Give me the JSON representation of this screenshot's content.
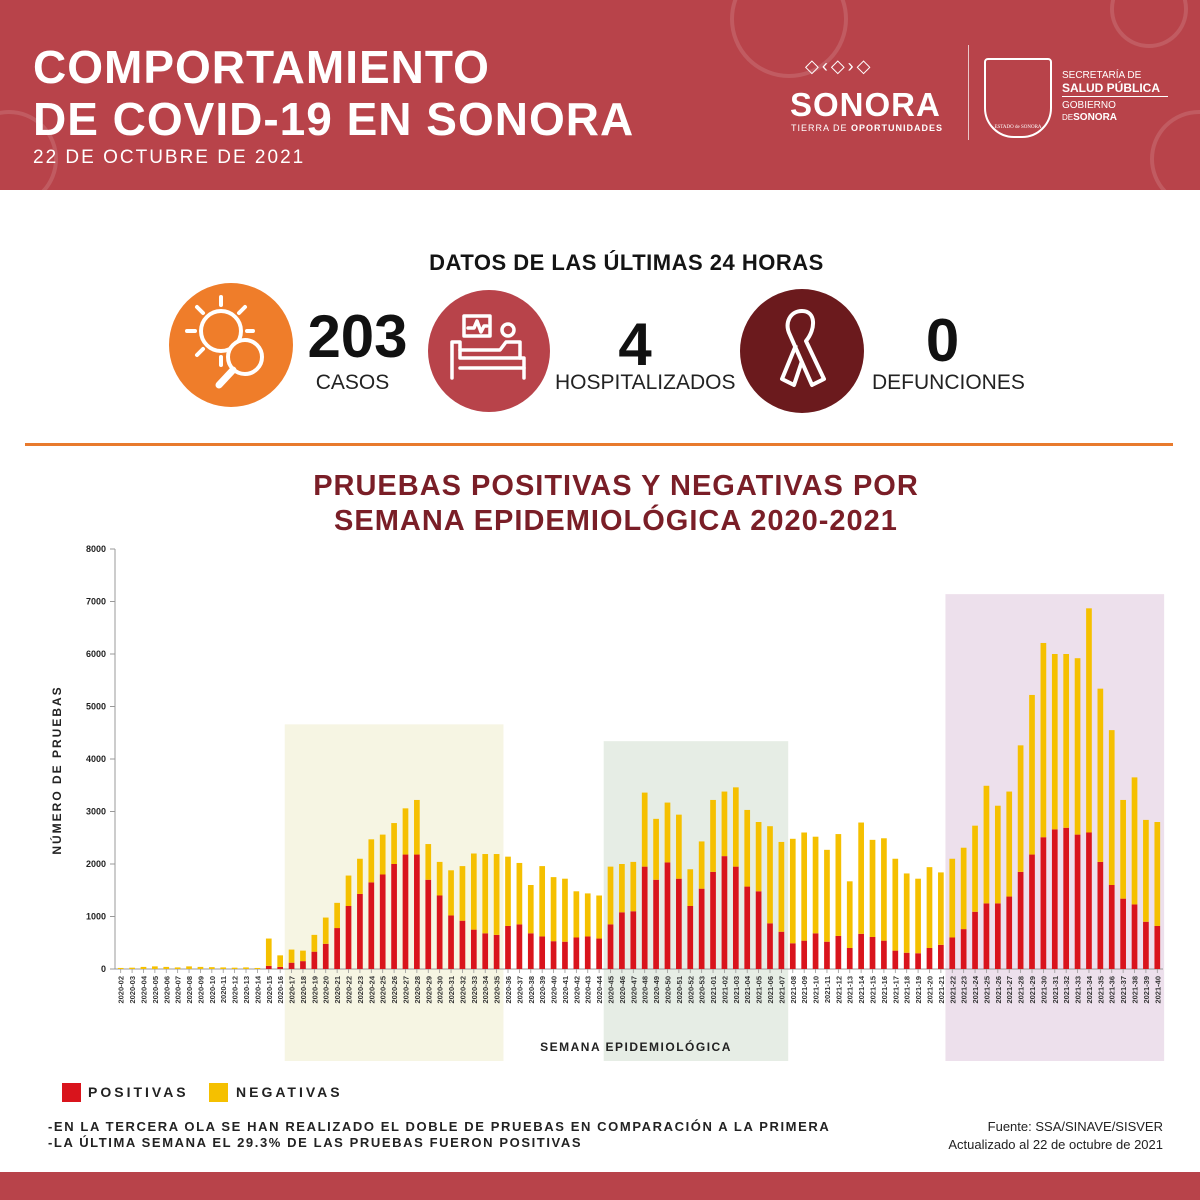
{
  "header": {
    "title_line1": "COMPORTAMIENTO",
    "title_line2": "DE COVID-19 EN SONORA",
    "date": "22 DE OCTUBRE DE 2021",
    "logo": {
      "name": "SONORA",
      "tagline_prefix": "TIERRA DE ",
      "tagline_bold": "OPORTUNIDADES",
      "seal_caption": "ESTADO de SONORA",
      "secretaria": "SECRETARÍA DE",
      "salud": "SALUD PÚBLICA",
      "gobierno": "GOBIERNO",
      "de": "DE",
      "de_sonora": "SONORA"
    },
    "color": "#b8434a"
  },
  "stats": {
    "title": "DATOS DE LAS ÚLTIMAS 24 HORAS",
    "items": [
      {
        "value": "203",
        "label": "CASOS",
        "icon": "virus-magnifier-icon",
        "circle_color": "#ef7d2a"
      },
      {
        "value": "4",
        "label": "HOSPITALIZADOS",
        "icon": "hospital-bed-icon",
        "circle_color": "#b8434a"
      },
      {
        "value": "0",
        "label": "DEFUNCIONES",
        "icon": "ribbon-icon",
        "circle_color": "#6b1a1d"
      }
    ]
  },
  "chart_title_line1": "PRUEBAS POSITIVAS Y NEGATIVAS POR",
  "chart_title_line2": "SEMANA EPIDEMIOLÓGICA 2020-2021",
  "chart_data": {
    "type": "bar",
    "stacked": true,
    "xlabel": "SEMANA EPIDEMIOLÓGICA",
    "ylabel": "NÚMERO DE PRUEBAS",
    "ylim": [
      0,
      8000
    ],
    "yticks": [
      0,
      1000,
      2000,
      3000,
      4000,
      5000,
      6000,
      7000,
      8000
    ],
    "grid": false,
    "legend_position": "bottom-left",
    "categories": [
      "2020-02",
      "2020-03",
      "2020-04",
      "2020-05",
      "2020-06",
      "2020-07",
      "2020-08",
      "2020-09",
      "2020-10",
      "2020-11",
      "2020-12",
      "2020-13",
      "2020-14",
      "2020-15",
      "2020-16",
      "2020-17",
      "2020-18",
      "2020-19",
      "2020-20",
      "2020-21",
      "2020-22",
      "2020-23",
      "2020-24",
      "2020-25",
      "2020-26",
      "2020-27",
      "2020-28",
      "2020-29",
      "2020-30",
      "2020-31",
      "2020-32",
      "2020-33",
      "2020-34",
      "2020-35",
      "2020-36",
      "2020-37",
      "2020-38",
      "2020-39",
      "2020-40",
      "2020-41",
      "2020-42",
      "2020-43",
      "2020-44",
      "2020-45",
      "2020-46",
      "2020-47",
      "2020-48",
      "2020-49",
      "2020-50",
      "2020-51",
      "2020-52",
      "2020-53",
      "2021-01",
      "2021-02",
      "2021-03",
      "2021-04",
      "2021-05",
      "2021-06",
      "2021-07",
      "2021-08",
      "2021-09",
      "2021-10",
      "2021-11",
      "2021-12",
      "2021-13",
      "2021-14",
      "2021-15",
      "2021-16",
      "2021-17",
      "2021-18",
      "2021-19",
      "2021-20",
      "2021-21",
      "2021-22",
      "2021-23",
      "2021-24",
      "2021-25",
      "2021-26",
      "2021-27",
      "2021-28",
      "2021-29",
      "2021-30",
      "2021-31",
      "2021-32",
      "2021-33",
      "2021-34",
      "2021-35",
      "2021-36",
      "2021-37",
      "2021-38",
      "2021-39",
      "2021-40"
    ],
    "series": [
      {
        "name": "POSITIVAS",
        "color": "#d9141c",
        "values": [
          0,
          0,
          0,
          0,
          0,
          0,
          0,
          0,
          0,
          0,
          0,
          0,
          0,
          60,
          40,
          120,
          150,
          330,
          480,
          780,
          1200,
          1430,
          1650,
          1800,
          2000,
          2180,
          2180,
          1700,
          1400,
          1020,
          920,
          750,
          680,
          650,
          820,
          850,
          680,
          620,
          530,
          520,
          600,
          620,
          580,
          850,
          1080,
          1100,
          1950,
          1700,
          2030,
          1720,
          1200,
          1530,
          1850,
          2150,
          1950,
          1570,
          1480,
          870,
          710,
          490,
          540,
          680,
          520,
          630,
          400,
          670,
          610,
          540,
          350,
          310,
          300,
          400,
          460,
          600,
          760,
          1090,
          1250,
          1250,
          1380,
          1850,
          2180,
          2510,
          2660,
          2690,
          2560,
          2600,
          2040,
          1600,
          1340,
          1230,
          900,
          820
        ]
      },
      {
        "name": "NEGATIVAS",
        "color": "#f5c000",
        "values": [
          20,
          25,
          40,
          50,
          40,
          30,
          50,
          40,
          35,
          30,
          25,
          30,
          20,
          520,
          220,
          250,
          200,
          320,
          500,
          480,
          580,
          670,
          820,
          760,
          780,
          880,
          1040,
          680,
          640,
          860,
          1040,
          1450,
          1510,
          1540,
          1320,
          1170,
          920,
          1340,
          1220,
          1200,
          880,
          820,
          820,
          1100,
          920,
          940,
          1410,
          1160,
          1140,
          1220,
          700,
          900,
          1370,
          1230,
          1510,
          1460,
          1320,
          1850,
          1710,
          1990,
          2060,
          1840,
          1750,
          1940,
          1270,
          2120,
          1850,
          1950,
          1750,
          1510,
          1420,
          1540,
          1380,
          1500,
          1550,
          1640,
          2240,
          1860,
          2000,
          2410,
          3040,
          3700,
          3340,
          3310,
          3360,
          4270,
          3300,
          2950,
          1880,
          2420,
          1940,
          1980
        ]
      }
    ],
    "highlight_regions": [
      {
        "from": "2020-17",
        "to": "2020-35",
        "color": "#f6f5e3"
      },
      {
        "from": "2020-45",
        "to": "2021-07",
        "color": "#e6ede5"
      },
      {
        "from": "2021-22",
        "to": "2021-40",
        "color": "#ede0ec"
      }
    ]
  },
  "legend": {
    "positive_label": "POSITIVAS",
    "negative_label": "NEGATIVAS"
  },
  "notes": [
    "-EN LA TERCERA OLA SE HAN REALIZADO EL DOBLE DE PRUEBAS EN COMPARACIÓN A LA PRIMERA",
    "-LA ÚLTIMA SEMANA EL 29.3% DE LAS PRUEBAS FUERON POSITIVAS"
  ],
  "source": {
    "line1": "Fuente: SSA/SINAVE/SISVER",
    "line2": "Actualizado al 22 de octubre de 2021"
  }
}
